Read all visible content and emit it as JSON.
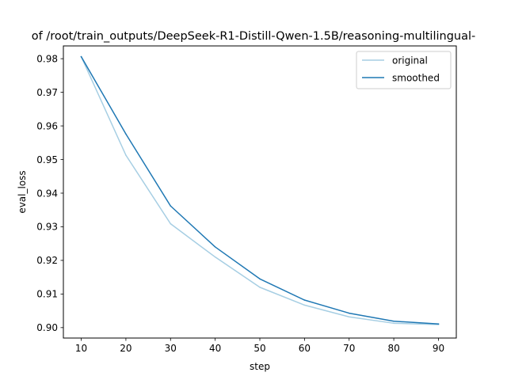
{
  "chart_data": {
    "type": "line",
    "title": "of /root/train_outputs/DeepSeek-R1-Distill-Qwen-1.5B/reasoning-multilingual-",
    "xlabel": "step",
    "ylabel": "eval_loss",
    "x": [
      10,
      20,
      30,
      40,
      50,
      60,
      70,
      80,
      90
    ],
    "xlim": [
      6,
      94
    ],
    "ylim": [
      0.8969,
      0.9838
    ],
    "x_ticks": [
      10,
      20,
      30,
      40,
      50,
      60,
      70,
      80,
      90
    ],
    "y_ticks": [
      0.9,
      0.91,
      0.92,
      0.93,
      0.94,
      0.95,
      0.96,
      0.97,
      0.98
    ],
    "y_tick_labels": [
      "0.90",
      "0.91",
      "0.92",
      "0.93",
      "0.94",
      "0.95",
      "0.96",
      "0.97",
      "0.98"
    ],
    "grid": false,
    "legend_position": "upper right",
    "series": [
      {
        "name": "original",
        "color": "#a6cee3",
        "values": [
          0.9806,
          0.9513,
          0.9309,
          0.921,
          0.912,
          0.9067,
          0.9032,
          0.9013,
          0.9009
        ]
      },
      {
        "name": "smoothed",
        "color": "#1f78b4",
        "values": [
          0.9806,
          0.9576,
          0.9362,
          0.924,
          0.9145,
          0.9082,
          0.9043,
          0.9019,
          0.9011
        ]
      }
    ]
  }
}
